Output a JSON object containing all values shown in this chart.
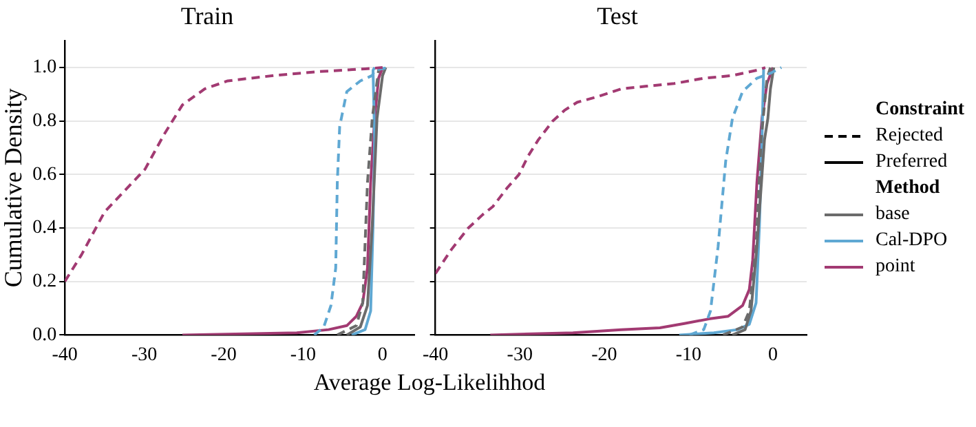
{
  "chart_data": [
    {
      "type": "line",
      "title": "Train",
      "xlabel": "Average Log-Likelihhod",
      "ylabel": "Cumulative Density",
      "xlim": [
        -40,
        4
      ],
      "xticks": [
        -40,
        -30,
        -20,
        -10,
        0
      ],
      "ylim": [
        0,
        1.1
      ],
      "yticks": [
        {
          "value": 0,
          "label": "0.0"
        },
        {
          "value": 0.2,
          "label": "0.2"
        },
        {
          "value": 0.4,
          "label": "0.4"
        },
        {
          "value": 0.6,
          "label": "0.6"
        },
        {
          "value": 0.8,
          "label": "0.8"
        },
        {
          "value": 1,
          "label": "1.0"
        }
      ],
      "grid": "y",
      "marker": "none",
      "legend": false,
      "series": [
        {
          "color": "#a23a72",
          "line_style": "dashed",
          "x": [
            -40,
            -37.9,
            -35,
            -29.9,
            -27.5,
            -25.2,
            -22.4,
            -19.5,
            -13.7,
            -7.9,
            -2.2,
            0
          ],
          "values": [
            0.2,
            0.3,
            0.46,
            0.62,
            0.75,
            0.86,
            0.92,
            0.95,
            0.97,
            0.985,
            0.995,
            1
          ]
        },
        {
          "color": "#5fa8d3",
          "line_style": "dashed",
          "x": [
            -8.6,
            -7.4,
            -6.5,
            -5.9,
            -5.7,
            -5.4,
            -4.5,
            -2.8,
            -1.3,
            -1,
            0.7
          ],
          "values": [
            0,
            0.03,
            0.11,
            0.25,
            0.57,
            0.78,
            0.91,
            0.95,
            0.97,
            0.99,
            1
          ]
        },
        {
          "color": "#6b6b6b",
          "line_style": "dashed",
          "x": [
            -5.7,
            -3.3,
            -2.5,
            -1.9,
            -1.3,
            -0.5,
            -0.2
          ],
          "values": [
            0,
            0.035,
            0.12,
            0.57,
            0.81,
            0.99,
            1
          ]
        },
        {
          "color": "#6b6b6b",
          "line_style": "solid",
          "x": [
            -4.5,
            -2.8,
            -1.9,
            -1.3,
            -0.7,
            0,
            0.4
          ],
          "values": [
            0,
            0.03,
            0.11,
            0.41,
            0.81,
            0.97,
            1
          ]
        },
        {
          "color": "#5fa8d3",
          "line_style": "solid",
          "x": [
            -3.9,
            -2.2,
            -1.5,
            -1.2,
            -1,
            -1.2,
            -1
          ],
          "values": [
            0,
            0.02,
            0.09,
            0.41,
            0.73,
            0.99,
            1
          ]
        },
        {
          "color": "#a23a72",
          "line_style": "solid",
          "x": [
            -25.2,
            -10.8,
            -6.8,
            -4.5,
            -3.3,
            -2.5,
            -1.9,
            -1.5,
            -1,
            -0.5,
            0
          ],
          "values": [
            0,
            0.008,
            0.02,
            0.035,
            0.07,
            0.12,
            0.25,
            0.57,
            0.81,
            0.96,
            1
          ]
        }
      ]
    },
    {
      "type": "line",
      "title": "Test",
      "xlim": [
        -40,
        4
      ],
      "xticks": [
        -40,
        -30,
        -20,
        -10,
        0
      ],
      "ylim": [
        0,
        1.1
      ],
      "yticks": [
        0,
        0.2,
        0.4,
        0.6,
        0.8,
        1
      ],
      "tick_labels": "x",
      "grid": "y",
      "marker": "none",
      "legend": "right",
      "series": [
        {
          "color": "#a23a72",
          "line_style": "dashed",
          "x": [
            -40,
            -38.1,
            -36.1,
            -34.4,
            -33.2,
            -31.5,
            -30.1,
            -29,
            -27.8,
            -26.1,
            -24.7,
            -23.2,
            -20.9,
            -18,
            -15.1,
            -11.7,
            -8.2,
            -4.8,
            -1.9,
            -0.9
          ],
          "values": [
            0.23,
            0.32,
            0.4,
            0.45,
            0.48,
            0.55,
            0.6,
            0.67,
            0.73,
            0.8,
            0.84,
            0.87,
            0.89,
            0.92,
            0.93,
            0.94,
            0.96,
            0.97,
            0.99,
            1
          ]
        },
        {
          "color": "#5fa8d3",
          "line_style": "dashed",
          "x": [
            -9.9,
            -8.2,
            -7.4,
            -6.5,
            -5.6,
            -4.8,
            -3.6,
            -1.9,
            -0.2,
            1
          ],
          "values": [
            0,
            0.02,
            0.09,
            0.33,
            0.65,
            0.81,
            0.91,
            0.96,
            0.98,
            1
          ]
        },
        {
          "color": "#6b6b6b",
          "line_style": "dashed",
          "x": [
            -5.9,
            -3.6,
            -2.8,
            -2,
            -1.4,
            -0.7,
            -0.3
          ],
          "values": [
            0,
            0.03,
            0.09,
            0.33,
            0.73,
            0.96,
            1
          ]
        },
        {
          "color": "#6b6b6b",
          "line_style": "solid",
          "x": [
            -4.8,
            -3.3,
            -2.6,
            -1.9,
            -1,
            -0.6,
            -0.3,
            0.1
          ],
          "values": [
            0,
            0.02,
            0.09,
            0.33,
            0.73,
            0.81,
            0.92,
            1
          ]
        },
        {
          "color": "#5fa8d3",
          "line_style": "solid",
          "x": [
            -11.1,
            -7,
            -4.2,
            -2.8,
            -2,
            -1.6,
            -1.3,
            -1.1
          ],
          "values": [
            0,
            0.008,
            0.02,
            0.04,
            0.12,
            0.41,
            0.73,
            1
          ]
        },
        {
          "color": "#a23a72",
          "line_style": "solid",
          "x": [
            -33.5,
            -23.7,
            -18,
            -13.4,
            -10.5,
            -7.6,
            -5.3,
            -3.6,
            -2.8,
            -2.4,
            -1.9,
            -1.3,
            -0.7,
            0
          ],
          "values": [
            0,
            0.008,
            0.02,
            0.027,
            0.043,
            0.06,
            0.07,
            0.11,
            0.17,
            0.28,
            0.57,
            0.81,
            0.94,
            1
          ]
        },
        {
          "name": "Constraint"
        },
        {
          "name": "Rejected",
          "color": "#000000",
          "line_style": "dashed"
        },
        {
          "name": "Preferred",
          "color": "#000000",
          "line_style": "solid"
        },
        {
          "name": "Method"
        },
        {
          "name": "base",
          "color": "#6b6b6b",
          "line_style": "solid"
        },
        {
          "name": "Cal-DPO",
          "color": "#5fa8d3",
          "line_style": "solid"
        },
        {
          "name": "point",
          "color": "#a23a72",
          "line_style": "solid"
        }
      ]
    }
  ]
}
